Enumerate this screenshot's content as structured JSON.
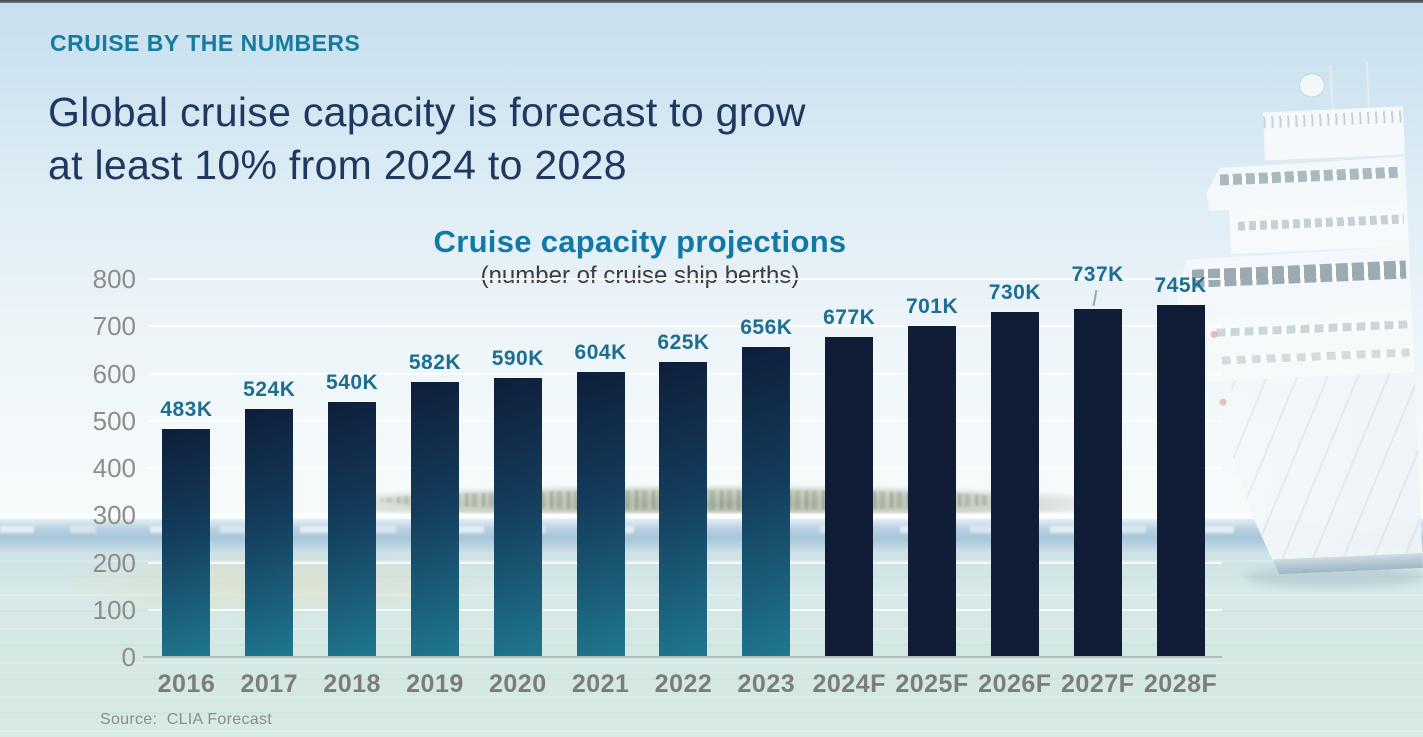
{
  "page": {
    "kicker": "CRUISE BY THE NUMBERS",
    "title_line1": "Global cruise capacity is forecast to grow",
    "title_line2": "at least 10% from 2024 to 2028",
    "source": "Source:  CLIA Forecast"
  },
  "chart_data": {
    "type": "bar",
    "title": "Cruise capacity projections",
    "subtitle": "(number of cruise ship berths)",
    "categories": [
      "2016",
      "2017",
      "2018",
      "2019",
      "2020",
      "2021",
      "2022",
      "2023",
      "2024F",
      "2025F",
      "2026F",
      "2027F",
      "2028F"
    ],
    "values": [
      483,
      524,
      540,
      582,
      590,
      604,
      625,
      656,
      677,
      701,
      730,
      737,
      745
    ],
    "value_labels": [
      "483K",
      "524K",
      "540K",
      "582K",
      "590K",
      "604K",
      "625K",
      "656K",
      "677K",
      "701K",
      "730K",
      "737K",
      "745K"
    ],
    "forecast_from_index": 8,
    "leader_line_index": 11,
    "y_ticks": [
      800,
      700,
      600,
      500,
      400,
      300,
      200,
      100,
      0
    ],
    "ylim": [
      0,
      800
    ],
    "grid": true,
    "legend": "none",
    "colors": {
      "historical_bar_gradient_top": "#0e1e3a",
      "historical_bar_gradient_mid": "#143c5c",
      "historical_bar_gradient_bottom": "#20788f",
      "forecast_bar": "#111c36",
      "value_label": "#1e6e92",
      "x_tick_text": "#7c7c7c",
      "y_tick_text": "#8d8d8d",
      "title_teal": "#1278a4",
      "headline_navy": "#203760"
    }
  }
}
